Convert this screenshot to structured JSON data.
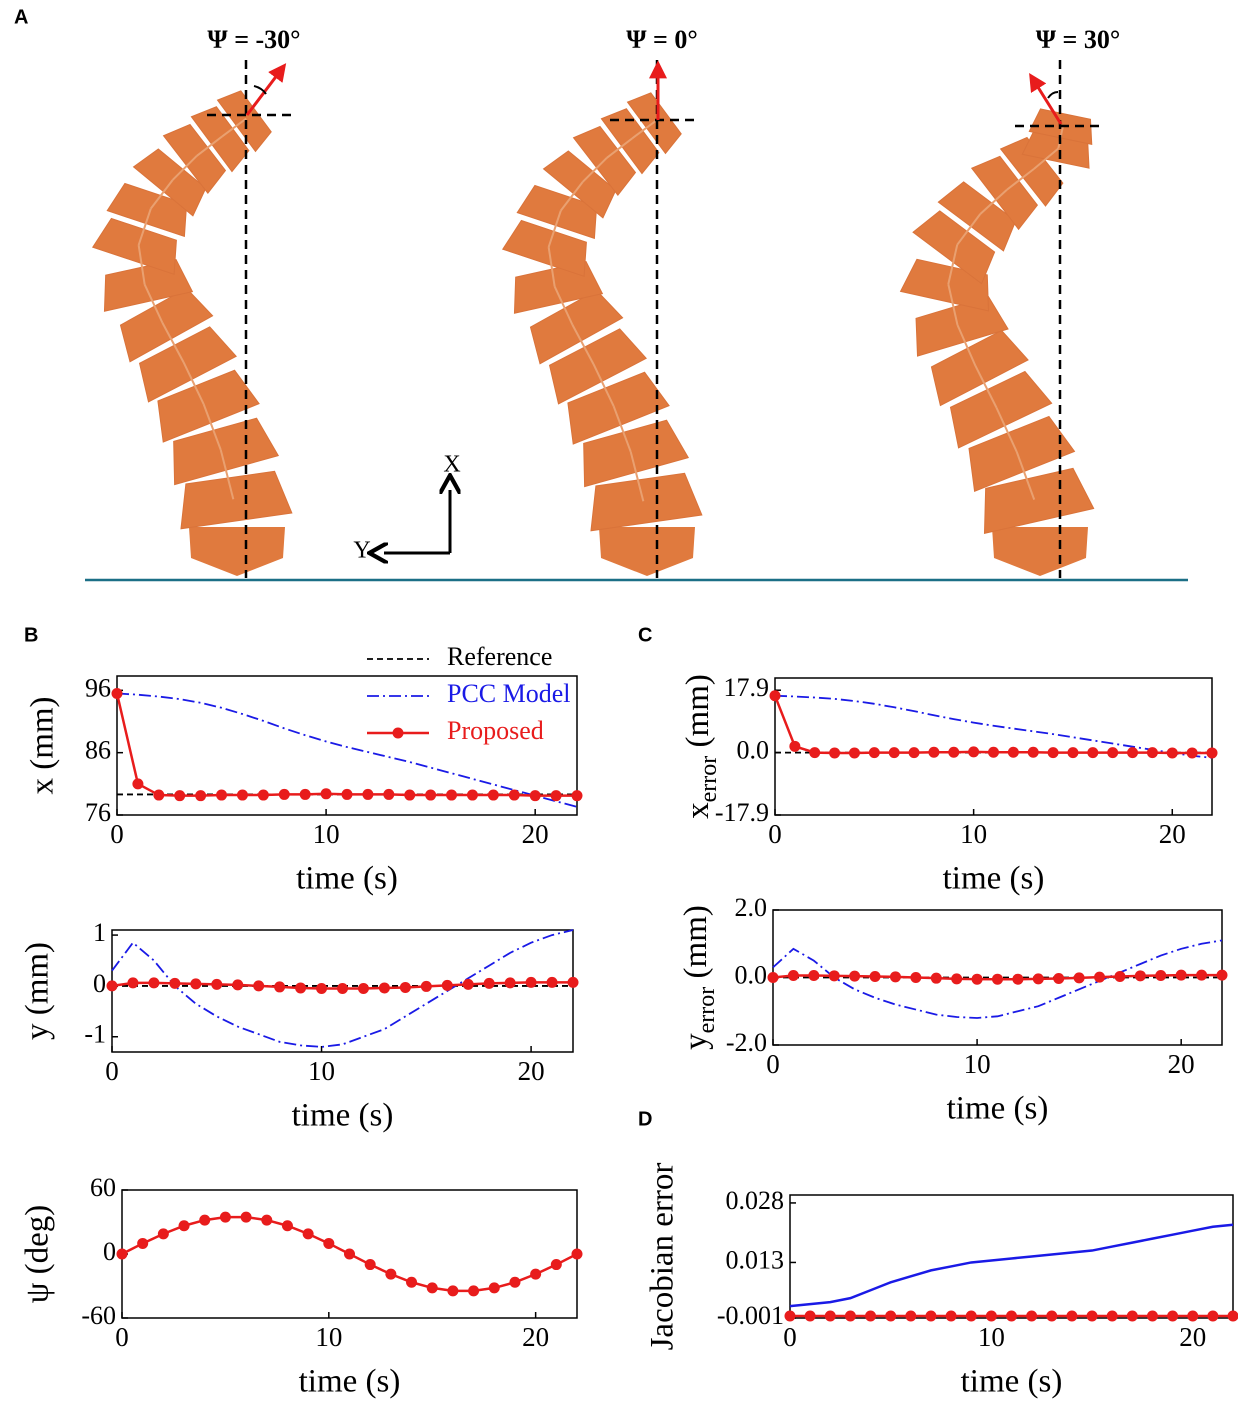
{
  "panel_labels": {
    "a": "A",
    "b": "B",
    "c": "C",
    "d": "D"
  },
  "diagram": {
    "angle_labels": [
      "Ψ = -30°",
      "Ψ = 0°",
      "Ψ = 30°"
    ],
    "axes": {
      "x": "X",
      "y": "Y"
    }
  },
  "chart_data": [
    {
      "type": "line",
      "ylabel": "x (mm)",
      "xlabel": "time (s)",
      "legend": "upper right",
      "x": [
        0,
        1,
        2,
        3,
        4,
        5,
        6,
        7,
        8,
        9,
        10,
        11,
        12,
        13,
        14,
        15,
        16,
        17,
        18,
        19,
        20,
        21,
        22
      ],
      "xlim": [
        0,
        22
      ],
      "xticks": [
        0,
        10,
        20
      ],
      "ylim": [
        76,
        98.3
      ],
      "yticks": [
        76,
        86,
        96
      ],
      "series": [
        {
          "name": "Reference",
          "color": "#000000",
          "style": "dashed",
          "values": [
            79.3,
            79.3,
            79.3,
            79.3,
            79.3,
            79.3,
            79.3,
            79.3,
            79.3,
            79.3,
            79.3,
            79.3,
            79.3,
            79.3,
            79.3,
            79.3,
            79.3,
            79.3,
            79.3,
            79.3,
            79.3,
            79.3,
            79.3
          ]
        },
        {
          "name": "PCC Model",
          "color": "#1a1ae6",
          "style": "dashdot",
          "values": [
            95.5,
            95.3,
            95,
            94.6,
            94,
            93.2,
            92.2,
            91.1,
            89.9,
            88.8,
            87.8,
            86.9,
            86.1,
            85.3,
            84.5,
            83.6,
            82.7,
            81.8,
            80.9,
            80,
            79.1,
            78.2,
            77.3
          ]
        },
        {
          "name": "Proposed",
          "color": "#e81c1c",
          "style": "solid",
          "markers": true,
          "values": [
            95.5,
            81,
            79.2,
            79.1,
            79.1,
            79.2,
            79.2,
            79.2,
            79.3,
            79.3,
            79.4,
            79.3,
            79.3,
            79.3,
            79.2,
            79.2,
            79.2,
            79.2,
            79.2,
            79.2,
            79.1,
            79.1,
            79.1
          ]
        }
      ]
    },
    {
      "type": "line",
      "ylabel": "y (mm)",
      "xlabel": "time (s)",
      "x": [
        0,
        1,
        2,
        3,
        4,
        5,
        6,
        7,
        8,
        9,
        10,
        11,
        12,
        13,
        14,
        15,
        16,
        17,
        18,
        19,
        20,
        21,
        22
      ],
      "xlim": [
        0,
        22
      ],
      "xticks": [
        0,
        10,
        20
      ],
      "ylim": [
        -1.3,
        1.1
      ],
      "yticks": [
        -1,
        0,
        1
      ],
      "series": [
        {
          "color": "#000000",
          "style": "dashed",
          "values": [
            0,
            0,
            0,
            0,
            0,
            0,
            0,
            0,
            0,
            0,
            0,
            0,
            0,
            0,
            0,
            0,
            0,
            0,
            0,
            0,
            0,
            0,
            0
          ]
        },
        {
          "color": "#1a1ae6",
          "style": "dashdot",
          "values": [
            0.3,
            0.85,
            0.5,
            0,
            -0.35,
            -0.6,
            -0.8,
            -0.95,
            -1.1,
            -1.17,
            -1.2,
            -1.15,
            -1,
            -0.85,
            -0.6,
            -0.35,
            -0.1,
            0.15,
            0.4,
            0.65,
            0.85,
            1,
            1.1
          ]
        },
        {
          "color": "#e81c1c",
          "style": "solid",
          "markers": true,
          "values": [
            0,
            0.06,
            0.06,
            0.05,
            0.04,
            0.03,
            0.02,
            0,
            -0.02,
            -0.04,
            -0.05,
            -0.05,
            -0.05,
            -0.04,
            -0.03,
            -0.01,
            0.01,
            0.03,
            0.05,
            0.06,
            0.07,
            0.07,
            0.07
          ]
        }
      ]
    },
    {
      "type": "line",
      "ylabel": "ψ (deg)",
      "xlabel": "time (s)",
      "x": [
        0,
        1,
        2,
        3,
        4,
        5,
        6,
        7,
        8,
        9,
        10,
        11,
        12,
        13,
        14,
        15,
        16,
        17,
        18,
        19,
        20,
        21,
        22
      ],
      "xlim": [
        0,
        22
      ],
      "xticks": [
        0,
        10,
        20
      ],
      "ylim": [
        -60,
        60
      ],
      "yticks": [
        -60,
        0,
        60
      ],
      "series": [
        {
          "color": "#000000",
          "style": "dashed",
          "values": [
            0,
            9.9,
            18.9,
            26.5,
            31.8,
            34.6,
            34.6,
            31.8,
            26.5,
            18.9,
            9.9,
            0,
            -9.9,
            -18.9,
            -26.5,
            -31.8,
            -34.6,
            -34.6,
            -31.8,
            -26.5,
            -18.9,
            -9.9,
            0
          ]
        },
        {
          "color": "#e81c1c",
          "style": "solid",
          "markers": true,
          "values": [
            0,
            9.9,
            18.9,
            26.5,
            31.8,
            34.6,
            34.6,
            31.8,
            26.5,
            18.9,
            9.9,
            0,
            -9.9,
            -18.9,
            -26.5,
            -31.8,
            -34.6,
            -34.6,
            -31.8,
            -26.5,
            -18.9,
            -9.9,
            0
          ]
        }
      ]
    },
    {
      "type": "line",
      "ylabel": {
        "main": "x",
        "sub": "error",
        "unit": " (mm)"
      },
      "xlabel": "time (s)",
      "x": [
        0,
        1,
        2,
        3,
        4,
        5,
        6,
        7,
        8,
        9,
        10,
        11,
        12,
        13,
        14,
        15,
        16,
        17,
        18,
        19,
        20,
        21,
        22
      ],
      "xlim": [
        0,
        22
      ],
      "xticks": [
        0,
        10,
        20
      ],
      "ylim": [
        -17.9,
        21.4
      ],
      "yticks": [
        -17.9,
        {
          "value": 0,
          "label": "0.0"
        },
        17.9
      ],
      "series": [
        {
          "color": "#000000",
          "style": "dashed",
          "values": [
            0,
            0,
            0,
            0,
            0,
            0,
            0,
            0,
            0,
            0,
            0,
            0,
            0,
            0,
            0,
            0,
            0,
            0,
            0,
            0,
            0,
            0,
            0
          ]
        },
        {
          "color": "#1a1ae6",
          "style": "dashdot",
          "values": [
            16.3,
            16.1,
            15.8,
            15.4,
            14.8,
            14,
            13,
            11.9,
            10.7,
            9.6,
            8.6,
            7.7,
            6.9,
            6.1,
            5.3,
            4.4,
            3.5,
            2.6,
            1.7,
            0.8,
            -0.1,
            -0.9,
            -1.5
          ]
        },
        {
          "color": "#e81c1c",
          "style": "solid",
          "markers": true,
          "values": [
            16.3,
            1.8,
            0,
            -0.1,
            -0.1,
            0,
            0,
            0,
            0.1,
            0.1,
            0.2,
            0.1,
            0.1,
            0.1,
            0,
            0,
            0,
            0,
            0,
            0,
            -0.1,
            -0.1,
            -0.1
          ]
        }
      ]
    },
    {
      "type": "line",
      "ylabel": {
        "main": "y",
        "sub": "error",
        "unit": " (mm)"
      },
      "xlabel": "time (s)",
      "x": [
        0,
        1,
        2,
        3,
        4,
        5,
        6,
        7,
        8,
        9,
        10,
        11,
        12,
        13,
        14,
        15,
        16,
        17,
        18,
        19,
        20,
        21,
        22
      ],
      "xlim": [
        0,
        22
      ],
      "xticks": [
        0,
        10,
        20
      ],
      "ylim": [
        -2,
        2
      ],
      "yticks": [
        {
          "value": -2,
          "label": "-2.0"
        },
        {
          "value": 0,
          "label": "0.0"
        },
        {
          "value": 2,
          "label": "2.0"
        }
      ],
      "series": [
        {
          "color": "#000000",
          "style": "dashed",
          "values": [
            0,
            0,
            0,
            0,
            0,
            0,
            0,
            0,
            0,
            0,
            0,
            0,
            0,
            0,
            0,
            0,
            0,
            0,
            0,
            0,
            0,
            0,
            0
          ]
        },
        {
          "color": "#1a1ae6",
          "style": "dashdot",
          "values": [
            0.3,
            0.85,
            0.5,
            0,
            -0.35,
            -0.6,
            -0.8,
            -0.95,
            -1.1,
            -1.17,
            -1.2,
            -1.15,
            -1,
            -0.85,
            -0.6,
            -0.35,
            -0.1,
            0.15,
            0.4,
            0.65,
            0.85,
            1,
            1.1
          ]
        },
        {
          "color": "#e81c1c",
          "style": "solid",
          "markers": true,
          "values": [
            0,
            0.06,
            0.06,
            0.05,
            0.04,
            0.03,
            0.02,
            0,
            -0.02,
            -0.04,
            -0.05,
            -0.05,
            -0.05,
            -0.04,
            -0.03,
            -0.01,
            0.01,
            0.03,
            0.05,
            0.06,
            0.07,
            0.07,
            0.07
          ]
        }
      ]
    },
    {
      "type": "line",
      "ylabel": "Jacobian error",
      "xlabel": "time (s)",
      "x": [
        0,
        1,
        2,
        3,
        4,
        5,
        6,
        7,
        8,
        9,
        10,
        11,
        12,
        13,
        14,
        15,
        16,
        17,
        18,
        19,
        20,
        21,
        22
      ],
      "xlim": [
        0,
        22
      ],
      "xticks": [
        0,
        10,
        20
      ],
      "ylim": [
        -0.001,
        0.03
      ],
      "yticks": [
        -0.001,
        0.013,
        0.028
      ],
      "series": [
        {
          "color": "#1a1ae6",
          "style": "solid",
          "values": [
            0.002,
            0.0025,
            0.003,
            0.004,
            0.006,
            0.008,
            0.0095,
            0.011,
            0.012,
            0.013,
            0.0135,
            0.014,
            0.0145,
            0.015,
            0.0155,
            0.016,
            0.017,
            0.018,
            0.019,
            0.02,
            0.021,
            0.022,
            0.0225
          ]
        },
        {
          "color": "#e81c1c",
          "style": "solid",
          "markers": true,
          "values": [
            -0.0005,
            -0.0005,
            -0.0005,
            -0.0005,
            -0.0005,
            -0.0005,
            -0.0005,
            -0.0005,
            -0.0005,
            -0.0005,
            -0.0005,
            -0.0005,
            -0.0005,
            -0.0005,
            -0.0005,
            -0.0005,
            -0.0005,
            -0.0005,
            -0.0005,
            -0.0005,
            -0.0005,
            -0.0005,
            -0.0005
          ]
        }
      ]
    }
  ]
}
